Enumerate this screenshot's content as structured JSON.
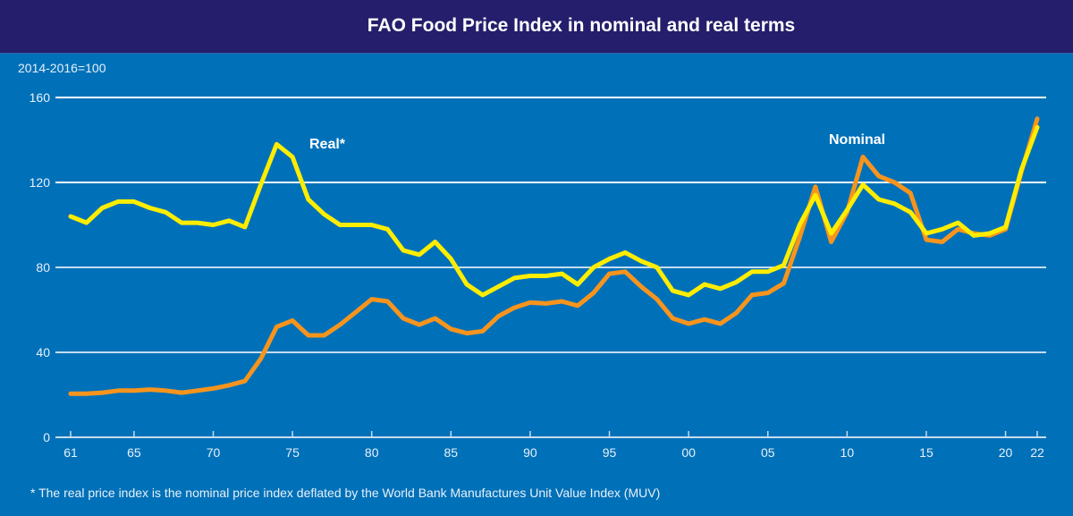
{
  "chart_data": {
    "type": "line",
    "title": "FAO Food Price Index in nominal and real terms",
    "ylabel": "2014-2016=100",
    "xlabel": "",
    "footnote": "* The real price index is the nominal price index deflated by the World Bank Manufactures Unit Value Index (MUV)",
    "ylim": [
      0,
      160
    ],
    "yticks": [
      0,
      40,
      80,
      120,
      160
    ],
    "xlim": [
      1961,
      2022
    ],
    "xticks": [
      {
        "year": 1961,
        "label": "61"
      },
      {
        "year": 1965,
        "label": "65"
      },
      {
        "year": 1970,
        "label": "70"
      },
      {
        "year": 1975,
        "label": "75"
      },
      {
        "year": 1980,
        "label": "80"
      },
      {
        "year": 1985,
        "label": "85"
      },
      {
        "year": 1990,
        "label": "90"
      },
      {
        "year": 1995,
        "label": "95"
      },
      {
        "year": 2000,
        "label": "00"
      },
      {
        "year": 2005,
        "label": "05"
      },
      {
        "year": 2010,
        "label": "10"
      },
      {
        "year": 2015,
        "label": "15"
      },
      {
        "year": 2020,
        "label": "20"
      },
      {
        "year": 2022,
        "label": "22"
      }
    ],
    "grid": true,
    "x": [
      1961,
      1962,
      1963,
      1964,
      1965,
      1966,
      1967,
      1968,
      1969,
      1970,
      1971,
      1972,
      1973,
      1974,
      1975,
      1976,
      1977,
      1978,
      1979,
      1980,
      1981,
      1982,
      1983,
      1984,
      1985,
      1986,
      1987,
      1988,
      1989,
      1990,
      1991,
      1992,
      1993,
      1994,
      1995,
      1996,
      1997,
      1998,
      1999,
      2000,
      2001,
      2002,
      2003,
      2004,
      2005,
      2006,
      2007,
      2008,
      2009,
      2010,
      2011,
      2012,
      2013,
      2014,
      2015,
      2016,
      2017,
      2018,
      2019,
      2020,
      2021,
      2022
    ],
    "series": [
      {
        "name": "Real*",
        "color": "#ffed00",
        "values": [
          104,
          101,
          108,
          111,
          111,
          108,
          106,
          101,
          101,
          100,
          102,
          99,
          119,
          138,
          132,
          112,
          105,
          100,
          100,
          100,
          98,
          88,
          86,
          92,
          84,
          72,
          67,
          71,
          75,
          76,
          76,
          77,
          72,
          80,
          84,
          87,
          83,
          80,
          69,
          67,
          72,
          70,
          73,
          78,
          78,
          81,
          100,
          114,
          96,
          107,
          119,
          112,
          110,
          106,
          96,
          98,
          101,
          95,
          96,
          99,
          126,
          146
        ]
      },
      {
        "name": "Nominal",
        "color": "#f7941d",
        "values": [
          20.5,
          20.5,
          21,
          22,
          22,
          22.5,
          22,
          21,
          22,
          23,
          24.5,
          26.5,
          37,
          52,
          55,
          48,
          48,
          53,
          59,
          65,
          64,
          56,
          53,
          56,
          51,
          49,
          50,
          57,
          61,
          63.5,
          63,
          64,
          62,
          68,
          77,
          78,
          71,
          65,
          56,
          53.5,
          55.5,
          53.5,
          58.5,
          67,
          68,
          72.5,
          94,
          118,
          92,
          106,
          132,
          123,
          120,
          115,
          93,
          92,
          98,
          96,
          95,
          98,
          125,
          150
        ]
      }
    ]
  }
}
